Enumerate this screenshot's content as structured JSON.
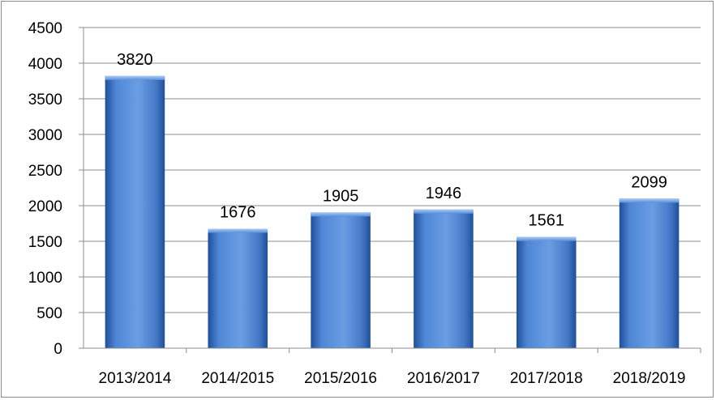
{
  "chart_data": {
    "type": "bar",
    "categories": [
      "2013/2014",
      "2014/2015",
      "2015/2016",
      "2016/2017",
      "2017/2018",
      "2018/2019"
    ],
    "values": [
      3820,
      1676,
      1905,
      1946,
      1561,
      2099
    ],
    "data_labels": [
      "3820",
      "1676",
      "1905",
      "1946",
      "1561",
      "2099"
    ],
    "y_ticks": [
      "0",
      "500",
      "1000",
      "1500",
      "2000",
      "2500",
      "3000",
      "3500",
      "4000",
      "4500"
    ],
    "title": "",
    "xlabel": "",
    "ylabel": "",
    "ylim": [
      0,
      4500
    ],
    "grid": true,
    "legend": "none",
    "colors": {
      "bar": "#4f86d6",
      "bar_dark": "#1f4f99",
      "bar_light": "#8fb8ee",
      "grid": "#8c8c8c",
      "axis": "#8c8c8c"
    }
  }
}
